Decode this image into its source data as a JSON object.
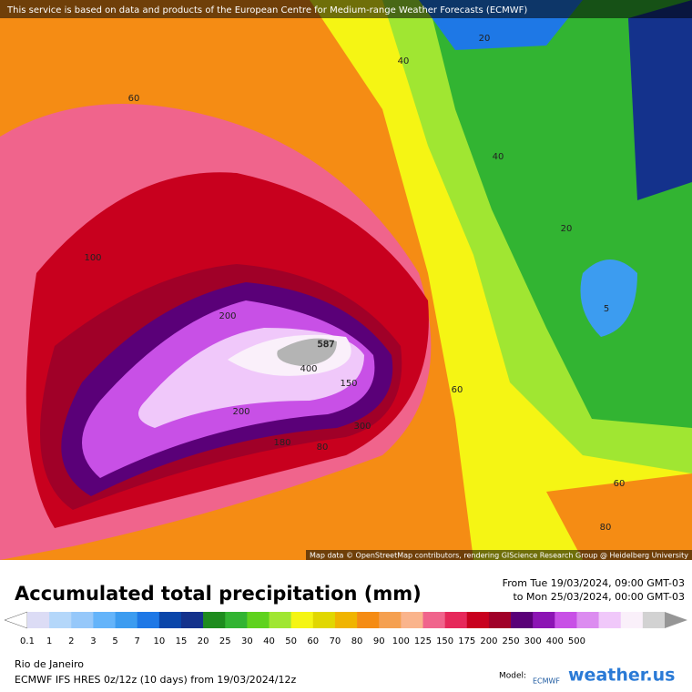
{
  "banner": "This service is based on data and products of the European Centre for Medium-range Weather Forecasts (ECMWF)",
  "attribution": "Map data © OpenStreetMap contributors, rendering GIScience Research Group @ Heidelberg University",
  "contour_labels": [
    "20",
    "40",
    "60",
    "40",
    "20",
    "100",
    "200",
    "587",
    "400",
    "150",
    "60",
    "200",
    "300",
    "80",
    "180",
    "5",
    "60",
    "80"
  ],
  "title": "Accumulated total precipitation (mm)",
  "period": [
    "From Tue 19/03/2024, 09:00 GMT-03",
    "to Mon 25/03/2024, 00:00 GMT-03"
  ],
  "legend": {
    "colors": [
      "#ffffff",
      "#dcdcf5",
      "#b4d7fa",
      "#96c8fa",
      "#64b4fa",
      "#3c9cf0",
      "#1e78e6",
      "#0a46aa",
      "#14328c",
      "#1e8c1e",
      "#32b432",
      "#5fd21e",
      "#a0e632",
      "#f5f514",
      "#e1d700",
      "#f0b400",
      "#f58c14",
      "#f5a050",
      "#fab48c",
      "#f0648c",
      "#e6285a",
      "#c8001e",
      "#a00028",
      "#5a0078",
      "#8c14b4",
      "#c850e6",
      "#dc8cf0",
      "#f0c8fa",
      "#faf0fa",
      "#d2d2d2",
      "#969696"
    ],
    "labels": [
      "0.1",
      "1",
      "2",
      "3",
      "5",
      "7",
      "10",
      "15",
      "20",
      "25",
      "30",
      "40",
      "50",
      "60",
      "70",
      "80",
      "90",
      "100",
      "125",
      "150",
      "175",
      "200",
      "250",
      "300",
      "400",
      "500"
    ]
  },
  "location": "Rio de Janeiro",
  "model_info": "ECMWF IFS HRES 0z/12z (10 days) from 19/03/2024/12z",
  "model_label": "Model:",
  "logo": "ECMWF",
  "brand": "weather.us"
}
